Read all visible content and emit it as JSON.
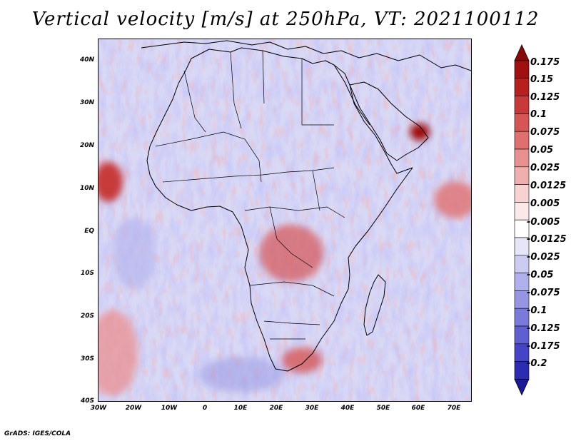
{
  "title": "Vertical velocity [m/s] at 250hPa, VT: 2021100112",
  "footer": "GrADS: IGES/COLA",
  "map": {
    "region": "Africa",
    "lat_range": [
      -40,
      45
    ],
    "lon_range": [
      -30,
      75
    ],
    "lat_ticks": [
      {
        "value": 40,
        "label": "40N"
      },
      {
        "value": 30,
        "label": "30N"
      },
      {
        "value": 20,
        "label": "20N"
      },
      {
        "value": 10,
        "label": "10N"
      },
      {
        "value": 0,
        "label": "EQ"
      },
      {
        "value": -10,
        "label": "10S"
      },
      {
        "value": -20,
        "label": "20S"
      },
      {
        "value": -30,
        "label": "30S"
      },
      {
        "value": -40,
        "label": "40S"
      }
    ],
    "lon_ticks": [
      {
        "value": -30,
        "label": "30W"
      },
      {
        "value": -20,
        "label": "20W"
      },
      {
        "value": -10,
        "label": "10W"
      },
      {
        "value": 0,
        "label": "0"
      },
      {
        "value": 10,
        "label": "10E"
      },
      {
        "value": 20,
        "label": "20E"
      },
      {
        "value": 30,
        "label": "30E"
      },
      {
        "value": 40,
        "label": "40E"
      },
      {
        "value": 50,
        "label": "50E"
      },
      {
        "value": 60,
        "label": "60E"
      },
      {
        "value": 70,
        "label": "70E"
      }
    ]
  },
  "colorbar": {
    "levels": [
      {
        "label": "0.175",
        "color": "#a01010"
      },
      {
        "label": "0.15",
        "color": "#b82020"
      },
      {
        "label": "0.125",
        "color": "#c83a3a"
      },
      {
        "label": "0.1",
        "color": "#d65555"
      },
      {
        "label": "0.075",
        "color": "#e07070"
      },
      {
        "label": "0.05",
        "color": "#e99090"
      },
      {
        "label": "0.025",
        "color": "#f0afaf"
      },
      {
        "label": "0.0125",
        "color": "#f7d2d2"
      },
      {
        "label": "0.005",
        "color": "#fbe9e9"
      },
      {
        "label": "-0.005",
        "color": "#ffffff"
      },
      {
        "label": "-0.0125",
        "color": "#e6e6f8"
      },
      {
        "label": "-0.025",
        "color": "#ccccf2"
      },
      {
        "label": "-0.05",
        "color": "#b0b0ec"
      },
      {
        "label": "-0.075",
        "color": "#9595e3"
      },
      {
        "label": "-0.1",
        "color": "#7a7adb"
      },
      {
        "label": "-0.125",
        "color": "#5f5fd2"
      },
      {
        "label": "-0.175",
        "color": "#4444c6"
      },
      {
        "label": "-0.2",
        "color": "#2b2bb4"
      }
    ],
    "bottom_color": "#1a1a99",
    "top_color": "#8a0a0a"
  }
}
